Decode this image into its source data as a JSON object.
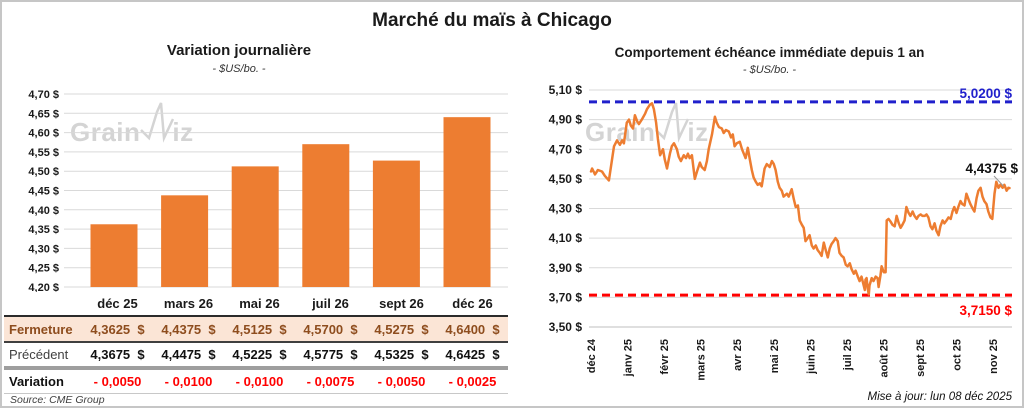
{
  "page": {
    "title": "Marché du maïs à Chicago",
    "source": "Source: CME Group",
    "updated": "Mise à jour: lun 08 déc 2025",
    "watermark": {
      "prefix": "Grain",
      "suffix": "iz"
    }
  },
  "colors": {
    "orange": "#ED7D31",
    "blue": "#2020CC",
    "red": "#FF0000",
    "grid": "#D9D9D9",
    "axis": "#BFBFBF",
    "text": "#1a1a1a",
    "leader": "#999999",
    "table_highlight_bg": "#FBE5D6",
    "table_highlight_text": "#8E4D1E",
    "watermark": "#D4D4D4"
  },
  "chart_data": [
    {
      "type": "bar",
      "title": "Variation journalière",
      "subtitle": "- $US/bo. -",
      "categories": [
        "déc 25",
        "mars 26",
        "mai 26",
        "juil 26",
        "sept 26",
        "déc 26"
      ],
      "values": [
        4.3625,
        4.4375,
        4.5125,
        4.57,
        4.5275,
        4.64
      ],
      "ylim": [
        4.2,
        4.7
      ],
      "ytick_step": 0.05,
      "grid": true,
      "bar_color": "#ED7D31"
    },
    {
      "type": "line",
      "title": "Comportement échéance immédiate depuis 1 an",
      "subtitle": "- $US/bo. -",
      "x_ticks": [
        "déc 24",
        "janv 25",
        "févr 25",
        "mars 25",
        "avr 25",
        "mai 25",
        "juin 25",
        "juil 25",
        "août 25",
        "sept 25",
        "oct 25",
        "nov 25"
      ],
      "ylim": [
        3.5,
        5.1
      ],
      "ytick_step": 0.2,
      "grid": true,
      "line_color": "#ED7D31",
      "high_line": {
        "value": 5.02,
        "label": "5,0200 $",
        "color": "#2020CC"
      },
      "low_line": {
        "value": 3.715,
        "label": "3,7150 $",
        "color": "#FF0000"
      },
      "last_value": 4.4375,
      "last_label": "4,4375 $",
      "points": [
        [
          0,
          4.55
        ],
        [
          0.03,
          4.57
        ],
        [
          0.11,
          4.53
        ],
        [
          0.19,
          4.56
        ],
        [
          0.3,
          4.55
        ],
        [
          0.38,
          4.52
        ],
        [
          0.49,
          4.49
        ],
        [
          0.57,
          4.62
        ],
        [
          0.63,
          4.72
        ],
        [
          0.71,
          4.76
        ],
        [
          0.79,
          4.73
        ],
        [
          0.85,
          4.76
        ],
        [
          0.9,
          4.74
        ],
        [
          0.98,
          4.88
        ],
        [
          1.04,
          4.9
        ],
        [
          1.09,
          4.86
        ],
        [
          1.15,
          4.84
        ],
        [
          1.2,
          4.93
        ],
        [
          1.26,
          4.89
        ],
        [
          1.31,
          4.87
        ],
        [
          1.39,
          4.9
        ],
        [
          1.48,
          4.94
        ],
        [
          1.53,
          4.97
        ],
        [
          1.61,
          5.0
        ],
        [
          1.67,
          5.01
        ],
        [
          1.72,
          4.97
        ],
        [
          1.78,
          4.88
        ],
        [
          1.83,
          4.77
        ],
        [
          1.89,
          4.66
        ],
        [
          1.97,
          4.7
        ],
        [
          2.02,
          4.63
        ],
        [
          2.08,
          4.57
        ],
        [
          2.16,
          4.67
        ],
        [
          2.21,
          4.72
        ],
        [
          2.27,
          4.74
        ],
        [
          2.35,
          4.7
        ],
        [
          2.4,
          4.65
        ],
        [
          2.46,
          4.62
        ],
        [
          2.54,
          4.66
        ],
        [
          2.6,
          4.64
        ],
        [
          2.65,
          4.67
        ],
        [
          2.7,
          4.64
        ],
        [
          2.76,
          4.66
        ],
        [
          2.84,
          4.5
        ],
        [
          2.9,
          4.55
        ],
        [
          2.98,
          4.61
        ],
        [
          3.03,
          4.58
        ],
        [
          3.11,
          4.56
        ],
        [
          3.17,
          4.62
        ],
        [
          3.22,
          4.7
        ],
        [
          3.31,
          4.8
        ],
        [
          3.39,
          4.92
        ],
        [
          3.44,
          4.88
        ],
        [
          3.5,
          4.85
        ],
        [
          3.58,
          4.84
        ],
        [
          3.63,
          4.81
        ],
        [
          3.69,
          4.83
        ],
        [
          3.77,
          4.82
        ],
        [
          3.83,
          4.78
        ],
        [
          3.88,
          4.8
        ],
        [
          3.93,
          4.72
        ],
        [
          3.99,
          4.74
        ],
        [
          4.07,
          4.75
        ],
        [
          4.13,
          4.7
        ],
        [
          4.18,
          4.67
        ],
        [
          4.23,
          4.64
        ],
        [
          4.29,
          4.71
        ],
        [
          4.34,
          4.64
        ],
        [
          4.4,
          4.56
        ],
        [
          4.45,
          4.51
        ],
        [
          4.51,
          4.48
        ],
        [
          4.56,
          4.46
        ],
        [
          4.62,
          4.47
        ],
        [
          4.67,
          4.45
        ],
        [
          4.75,
          4.57
        ],
        [
          4.81,
          4.6
        ],
        [
          4.89,
          4.58
        ],
        [
          4.95,
          4.62
        ],
        [
          5.0,
          4.6
        ],
        [
          5.05,
          4.56
        ],
        [
          5.11,
          4.48
        ],
        [
          5.16,
          4.44
        ],
        [
          5.22,
          4.42
        ],
        [
          5.27,
          4.38
        ],
        [
          5.36,
          4.4
        ],
        [
          5.41,
          4.38
        ],
        [
          5.49,
          4.43
        ],
        [
          5.55,
          4.36
        ],
        [
          5.6,
          4.31
        ],
        [
          5.66,
          4.32
        ],
        [
          5.71,
          4.22
        ],
        [
          5.77,
          4.19
        ],
        [
          5.82,
          4.17
        ],
        [
          5.87,
          4.08
        ],
        [
          5.93,
          4.1
        ],
        [
          5.98,
          4.12
        ],
        [
          6.04,
          4.05
        ],
        [
          6.09,
          4.03
        ],
        [
          6.15,
          4.05
        ],
        [
          6.2,
          4.02
        ],
        [
          6.26,
          4.0
        ],
        [
          6.31,
          3.98
        ],
        [
          6.37,
          4.07
        ],
        [
          6.42,
          4.02
        ],
        [
          6.48,
          3.97
        ],
        [
          6.53,
          4.03
        ],
        [
          6.58,
          4.06
        ],
        [
          6.64,
          4.08
        ],
        [
          6.69,
          4.1
        ],
        [
          6.75,
          4.08
        ],
        [
          6.8,
          4.0
        ],
        [
          6.86,
          3.98
        ],
        [
          6.91,
          3.97
        ],
        [
          6.97,
          3.92
        ],
        [
          7.02,
          3.91
        ],
        [
          7.08,
          3.93
        ],
        [
          7.13,
          3.89
        ],
        [
          7.19,
          3.86
        ],
        [
          7.24,
          3.88
        ],
        [
          7.3,
          3.84
        ],
        [
          7.35,
          3.81
        ],
        [
          7.4,
          3.84
        ],
        [
          7.46,
          3.78
        ],
        [
          7.49,
          3.75
        ],
        [
          7.51,
          3.82
        ],
        [
          7.54,
          3.83
        ],
        [
          7.57,
          3.76
        ],
        [
          7.6,
          3.72
        ],
        [
          7.62,
          3.78
        ],
        [
          7.68,
          3.83
        ],
        [
          7.73,
          3.81
        ],
        [
          7.79,
          3.84
        ],
        [
          7.84,
          3.83
        ],
        [
          7.87,
          3.77
        ],
        [
          7.92,
          3.85
        ],
        [
          7.95,
          3.91
        ],
        [
          8.01,
          3.87
        ],
        [
          8.06,
          3.87
        ],
        [
          8.09,
          4.22
        ],
        [
          8.14,
          4.23
        ],
        [
          8.2,
          4.21
        ],
        [
          8.25,
          4.19
        ],
        [
          8.31,
          4.18
        ],
        [
          8.36,
          4.25
        ],
        [
          8.42,
          4.2
        ],
        [
          8.47,
          4.17
        ],
        [
          8.52,
          4.19
        ],
        [
          8.58,
          4.22
        ],
        [
          8.63,
          4.31
        ],
        [
          8.69,
          4.27
        ],
        [
          8.74,
          4.25
        ],
        [
          8.8,
          4.28
        ],
        [
          8.85,
          4.25
        ],
        [
          8.91,
          4.23
        ],
        [
          8.96,
          4.25
        ],
        [
          9.02,
          4.26
        ],
        [
          9.07,
          4.25
        ],
        [
          9.13,
          4.25
        ],
        [
          9.18,
          4.26
        ],
        [
          9.23,
          4.24
        ],
        [
          9.29,
          4.18
        ],
        [
          9.34,
          4.16
        ],
        [
          9.4,
          4.2
        ],
        [
          9.45,
          4.15
        ],
        [
          9.51,
          4.12
        ],
        [
          9.56,
          4.18
        ],
        [
          9.62,
          4.22
        ],
        [
          9.67,
          4.2
        ],
        [
          9.73,
          4.22
        ],
        [
          9.78,
          4.24
        ],
        [
          9.84,
          4.23
        ],
        [
          9.89,
          4.28
        ],
        [
          9.94,
          4.31
        ],
        [
          10.0,
          4.27
        ],
        [
          10.05,
          4.31
        ],
        [
          10.11,
          4.35
        ],
        [
          10.16,
          4.33
        ],
        [
          10.22,
          4.32
        ],
        [
          10.27,
          4.4
        ],
        [
          10.33,
          4.36
        ],
        [
          10.38,
          4.33
        ],
        [
          10.44,
          4.3
        ],
        [
          10.49,
          4.28
        ],
        [
          10.55,
          4.37
        ],
        [
          10.6,
          4.42
        ],
        [
          10.66,
          4.44
        ],
        [
          10.71,
          4.38
        ],
        [
          10.76,
          4.35
        ],
        [
          10.82,
          4.33
        ],
        [
          10.87,
          4.28
        ],
        [
          10.93,
          4.24
        ],
        [
          10.98,
          4.23
        ],
        [
          11.04,
          4.4
        ],
        [
          11.09,
          4.48
        ],
        [
          11.15,
          4.44
        ],
        [
          11.2,
          4.46
        ],
        [
          11.26,
          4.44
        ],
        [
          11.31,
          4.46
        ],
        [
          11.37,
          4.42
        ],
        [
          11.42,
          4.44
        ],
        [
          11.45,
          4.4375
        ]
      ]
    }
  ],
  "table": {
    "headers": [
      "déc 25",
      "mars 26",
      "mai 26",
      "juil 26",
      "sept 26",
      "déc 26"
    ],
    "rows": [
      {
        "label": "Fermeture",
        "style": "highlight",
        "values": [
          "4,3625  $",
          "4,4375  $",
          "4,5125  $",
          "4,5700  $",
          "4,5275  $",
          "4,6400  $"
        ]
      },
      {
        "label": "Précédent",
        "style": "normal",
        "values": [
          "4,3675  $",
          "4,4475  $",
          "4,5225  $",
          "4,5775  $",
          "4,5325  $",
          "4,6425  $"
        ]
      },
      {
        "label": "Variation",
        "style": "negative",
        "values": [
          "- 0,0050",
          "- 0,0100",
          "- 0,0100",
          "- 0,0075",
          "- 0,0050",
          "- 0,0025"
        ]
      }
    ]
  }
}
